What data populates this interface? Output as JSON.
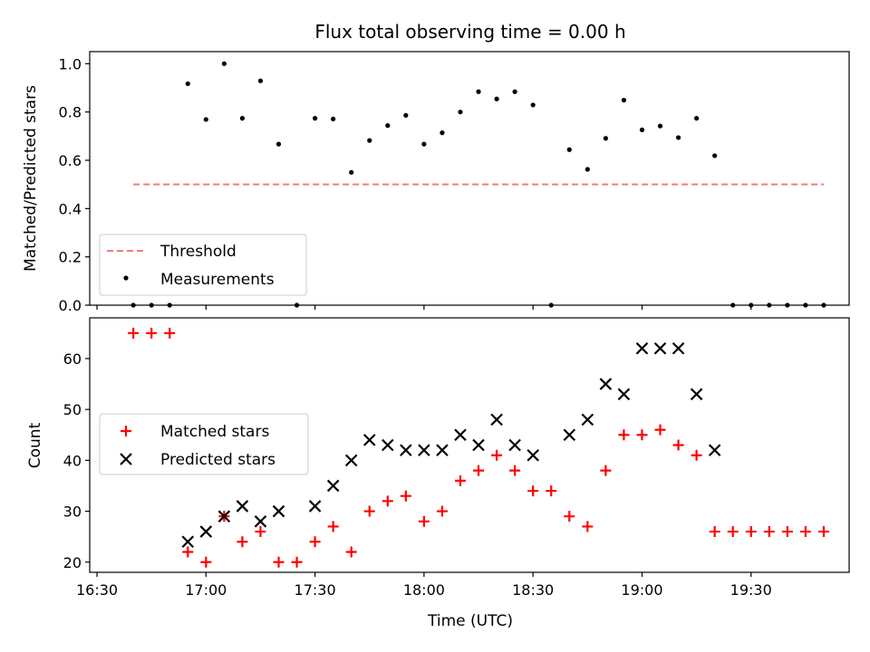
{
  "chart_data": [
    {
      "type": "scatter",
      "title": "Flux total observing time = 0.00 h",
      "xlabel": "",
      "ylabel": "Matched/Predicted stars",
      "xlim_minutes_since_1630": [
        -2,
        207
      ],
      "ylim": [
        0,
        1.05
      ],
      "yticks": [
        0.0,
        0.2,
        0.4,
        0.6,
        0.8,
        1.0
      ],
      "ytick_labels": [
        "0.0",
        "0.2",
        "0.4",
        "0.6",
        "0.8",
        "1.0"
      ],
      "legend_position": "lower-left",
      "threshold": {
        "name": "Threshold",
        "value": 0.5,
        "x_range_minutes": [
          10,
          200
        ],
        "color": "#f47a7a"
      },
      "series": [
        {
          "name": "Measurements",
          "color": "#000000",
          "marker": "dot",
          "x_minutes": [
            10,
            15,
            20,
            25,
            30,
            35,
            40,
            45,
            50,
            55,
            60,
            65,
            70,
            75,
            80,
            85,
            90,
            95,
            100,
            105,
            110,
            115,
            120,
            125,
            130,
            135,
            140,
            145,
            150,
            155,
            160,
            165,
            170,
            175,
            180,
            185,
            190,
            195,
            200
          ],
          "values": [
            0.0,
            0.0,
            0.0,
            0.917,
            0.769,
            1.0,
            0.774,
            0.929,
            0.667,
            0.0,
            0.774,
            0.771,
            0.55,
            0.682,
            0.744,
            0.786,
            0.667,
            0.714,
            0.8,
            0.884,
            0.854,
            0.884,
            0.829,
            0.0,
            0.644,
            0.5625,
            0.691,
            0.849,
            0.726,
            0.742,
            0.694,
            0.774,
            0.619,
            0.0,
            0.0,
            0.0,
            0.0,
            0.0,
            0.0
          ]
        }
      ]
    },
    {
      "type": "scatter",
      "title": "",
      "xlabel": "Time (UTC)",
      "ylabel": "Count",
      "xlim_minutes_since_1630": [
        -2,
        207
      ],
      "ylim": [
        18,
        68
      ],
      "yticks": [
        20,
        30,
        40,
        50,
        60
      ],
      "ytick_labels": [
        "20",
        "30",
        "40",
        "50",
        "60"
      ],
      "xticks_minutes": [
        0,
        30,
        60,
        90,
        120,
        150,
        180
      ],
      "xtick_labels": [
        "16:30",
        "17:00",
        "17:30",
        "18:00",
        "18:30",
        "19:00",
        "19:30"
      ],
      "legend_position": "center-left",
      "series": [
        {
          "name": "Matched stars",
          "color": "#ff0000",
          "marker": "plus",
          "x_minutes": [
            10,
            15,
            20,
            25,
            30,
            35,
            40,
            45,
            50,
            55,
            60,
            65,
            70,
            75,
            80,
            85,
            90,
            95,
            100,
            105,
            110,
            115,
            120,
            125,
            130,
            135,
            140,
            145,
            150,
            155,
            160,
            165,
            170,
            175,
            180,
            185,
            190,
            195,
            200
          ],
          "values": [
            65,
            65,
            65,
            22,
            20,
            29,
            24,
            26,
            20,
            20,
            24,
            27,
            22,
            30,
            32,
            33,
            28,
            30,
            36,
            38,
            41,
            38,
            34,
            34,
            29,
            27,
            38,
            45,
            45,
            46,
            43,
            41,
            26,
            26,
            26,
            26,
            26,
            26,
            26
          ]
        },
        {
          "name": "Predicted stars",
          "color": "#000000",
          "marker": "x",
          "x_minutes": [
            25,
            30,
            35,
            40,
            45,
            50,
            60,
            65,
            70,
            75,
            80,
            85,
            90,
            95,
            100,
            105,
            110,
            115,
            120,
            130,
            135,
            140,
            145,
            150,
            155,
            160,
            165,
            170
          ],
          "values": [
            24,
            26,
            29,
            31,
            28,
            30,
            31,
            35,
            40,
            44,
            43,
            42,
            42,
            42,
            45,
            43,
            48,
            43,
            41,
            45,
            48,
            55,
            53,
            62,
            62,
            62,
            53,
            42
          ]
        }
      ]
    }
  ]
}
